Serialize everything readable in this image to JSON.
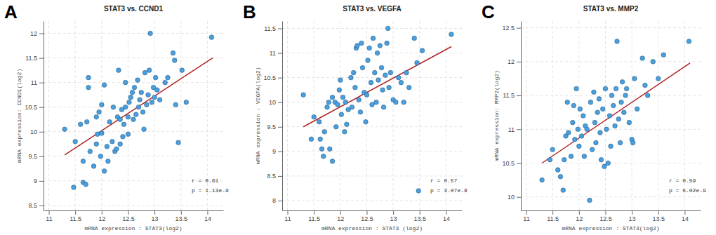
{
  "chart_data": [
    {
      "type": "scatter",
      "panel": "A",
      "title": "STAT3 vs. CCND1",
      "x_label": "mRNA expression : STAT3(log2)",
      "y_label": "mRNA expression: CCND1(log2)",
      "annotations": [
        "r = 0.61",
        "p = 1.13e-9"
      ],
      "color": "#4a9fdc",
      "grid": true,
      "xlim": [
        10.9,
        14.3
      ],
      "xticks": [
        11,
        11.5,
        12,
        12.5,
        13,
        13.5,
        14
      ],
      "ylim": [
        8.4,
        12.25
      ],
      "yticks": [
        8.5,
        9,
        9.5,
        10,
        10.5,
        11,
        11.5,
        12
      ],
      "x": [
        11.3,
        11.47,
        11.5,
        11.6,
        11.65,
        11.65,
        11.7,
        11.72,
        11.75,
        11.75,
        11.78,
        11.85,
        11.9,
        11.9,
        11.92,
        11.95,
        11.98,
        12.0,
        12.0,
        12.05,
        12.05,
        12.1,
        12.12,
        12.15,
        12.2,
        12.22,
        12.25,
        12.28,
        12.3,
        12.32,
        12.35,
        12.35,
        12.38,
        12.4,
        12.42,
        12.45,
        12.45,
        12.5,
        12.5,
        12.52,
        12.55,
        12.58,
        12.6,
        12.62,
        12.65,
        12.68,
        12.7,
        12.72,
        12.75,
        12.78,
        12.8,
        12.82,
        12.85,
        12.88,
        12.9,
        12.92,
        12.95,
        12.98,
        13.0,
        13.02,
        13.05,
        13.1,
        13.2,
        13.25,
        13.35,
        13.38,
        13.4,
        13.45,
        13.52,
        13.6,
        14.08
      ],
      "values": [
        10.05,
        8.87,
        9.8,
        10.15,
        9.4,
        8.97,
        8.93,
        10.2,
        11.1,
        10.9,
        9.6,
        9.3,
        9.75,
        10.3,
        9.95,
        10.4,
        9.5,
        9.97,
        10.55,
        9.2,
        10.95,
        9.7,
        9.4,
        10.2,
        9.8,
        10.5,
        9.6,
        9.65,
        10.3,
        11.25,
        9.75,
        10.25,
        10.45,
        9.9,
        10.15,
        11.0,
        10.5,
        9.95,
        10.3,
        10.6,
        10.7,
        10.8,
        10.25,
        10.9,
        10.35,
        11.05,
        10.5,
        10.65,
        10.8,
        10.4,
        10.05,
        11.2,
        10.55,
        10.75,
        11.25,
        12.0,
        10.6,
        10.9,
        10.7,
        11.1,
        10.85,
        10.65,
        11.0,
        11.1,
        11.6,
        11.45,
        10.55,
        9.78,
        11.25,
        10.6,
        11.92
      ],
      "fit_line": {
        "x": [
          11.3,
          14.1
        ],
        "y": [
          9.53,
          11.5
        ],
        "color": "#b22222"
      }
    },
    {
      "type": "scatter",
      "panel": "B",
      "title": "STAT3 vs. VEGFA",
      "x_label": "mRNA expression : STAT3 (log2)",
      "y_label": "mRNA expression : VEGFA(log2)",
      "annotations": [
        "r = 0.57",
        "p = 3.07e-8"
      ],
      "color": "#4a9fdc",
      "grid": true,
      "xlim": [
        10.9,
        14.3
      ],
      "xticks": [
        11,
        11.5,
        12,
        12.5,
        13,
        13.5,
        14
      ],
      "ylim": [
        7.8,
        11.65
      ],
      "yticks": [
        8,
        8.5,
        9,
        9.5,
        10,
        10.5,
        11,
        11.5
      ],
      "x": [
        11.3,
        11.45,
        11.5,
        11.6,
        11.62,
        11.65,
        11.68,
        11.7,
        11.75,
        11.78,
        11.8,
        11.85,
        11.85,
        11.9,
        11.92,
        11.95,
        11.98,
        12.0,
        12.02,
        12.05,
        12.08,
        12.1,
        12.12,
        12.15,
        12.2,
        12.22,
        12.25,
        12.28,
        12.3,
        12.32,
        12.35,
        12.38,
        12.4,
        12.42,
        12.45,
        12.48,
        12.5,
        12.52,
        12.55,
        12.58,
        12.6,
        12.62,
        12.65,
        12.68,
        12.7,
        12.72,
        12.75,
        12.78,
        12.8,
        12.82,
        12.85,
        12.88,
        12.9,
        12.92,
        12.95,
        13.0,
        13.05,
        13.1,
        13.15,
        13.2,
        13.25,
        13.3,
        13.4,
        13.45,
        13.48,
        13.55,
        14.1
      ],
      "values": [
        10.15,
        9.25,
        9.7,
        9.6,
        9.25,
        9.05,
        8.9,
        9.4,
        9.9,
        10.0,
        9.05,
        8.8,
        10.1,
        10.0,
        9.5,
        9.95,
        10.25,
        10.45,
        9.75,
        10.1,
        9.4,
        10.0,
        9.55,
        9.85,
        10.5,
        9.9,
        10.6,
        10.3,
        11.1,
        11.15,
        10.05,
        9.8,
        11.2,
        10.7,
        10.2,
        9.6,
        10.15,
        10.85,
        11.1,
        10.4,
        9.95,
        11.3,
        10.6,
        10.0,
        11.0,
        10.45,
        11.15,
        10.7,
        10.25,
        9.9,
        10.55,
        11.2,
        11.5,
        10.3,
        10.6,
        10.05,
        10.0,
        10.5,
        10.4,
        10.0,
        10.6,
        10.3,
        11.3,
        10.8,
        8.2,
        11.05,
        11.38
      ],
      "fit_line": {
        "x": [
          11.3,
          14.1
        ],
        "y": [
          9.5,
          11.13
        ],
        "color": "#b22222"
      }
    },
    {
      "type": "scatter",
      "panel": "C",
      "title": "STAT3 vs. MMP2",
      "x_label": "mRNA expression : STAT3(log2)",
      "y_label": "mRNA expression: MMP2(log2)",
      "annotations": [
        "r = 0.59",
        "p = 5.02e-9"
      ],
      "color": "#4a9fdc",
      "grid": true,
      "xlim": [
        10.9,
        14.3
      ],
      "xticks": [
        11,
        11.5,
        12,
        12.5,
        13,
        13.5,
        14
      ],
      "ylim": [
        9.8,
        12.6
      ],
      "yticks": [
        10,
        10.5,
        11,
        11.5,
        12,
        12.5
      ],
      "x": [
        11.3,
        11.45,
        11.5,
        11.6,
        11.65,
        11.7,
        11.72,
        11.75,
        11.78,
        11.8,
        11.85,
        11.88,
        11.9,
        11.92,
        11.95,
        11.98,
        12.0,
        12.02,
        12.05,
        12.08,
        12.1,
        12.12,
        12.15,
        12.2,
        12.22,
        12.25,
        12.28,
        12.3,
        12.32,
        12.35,
        12.38,
        12.4,
        12.42,
        12.45,
        12.48,
        12.5,
        12.52,
        12.55,
        12.58,
        12.6,
        12.62,
        12.65,
        12.68,
        12.7,
        12.72,
        12.75,
        12.78,
        12.8,
        12.82,
        12.85,
        12.88,
        12.9,
        12.95,
        13.0,
        13.02,
        13.05,
        13.1,
        13.2,
        13.25,
        13.3,
        13.4,
        13.5,
        13.6,
        14.08
      ],
      "values": [
        10.25,
        10.55,
        10.7,
        10.4,
        10.3,
        10.1,
        10.55,
        10.9,
        11.4,
        10.95,
        10.6,
        11.1,
        11.35,
        10.85,
        11.6,
        11.0,
        10.75,
        11.3,
        10.9,
        11.2,
        10.6,
        11.05,
        11.0,
        9.95,
        11.4,
        10.7,
        11.55,
        11.1,
        10.8,
        11.25,
        11.45,
        10.95,
        10.55,
        11.3,
        10.45,
        11.6,
        11.0,
        10.5,
        11.2,
        10.75,
        11.5,
        11.35,
        11.05,
        11.6,
        12.3,
        11.15,
        10.8,
        11.4,
        11.7,
        11.25,
        11.5,
        11.6,
        11.1,
        10.85,
        10.8,
        11.75,
        11.3,
        12.05,
        11.65,
        11.5,
        12.0,
        11.75,
        12.1,
        12.3
      ],
      "fit_line": {
        "x": [
          11.3,
          14.1
        ],
        "y": [
          10.5,
          11.98
        ],
        "color": "#b22222"
      }
    }
  ]
}
